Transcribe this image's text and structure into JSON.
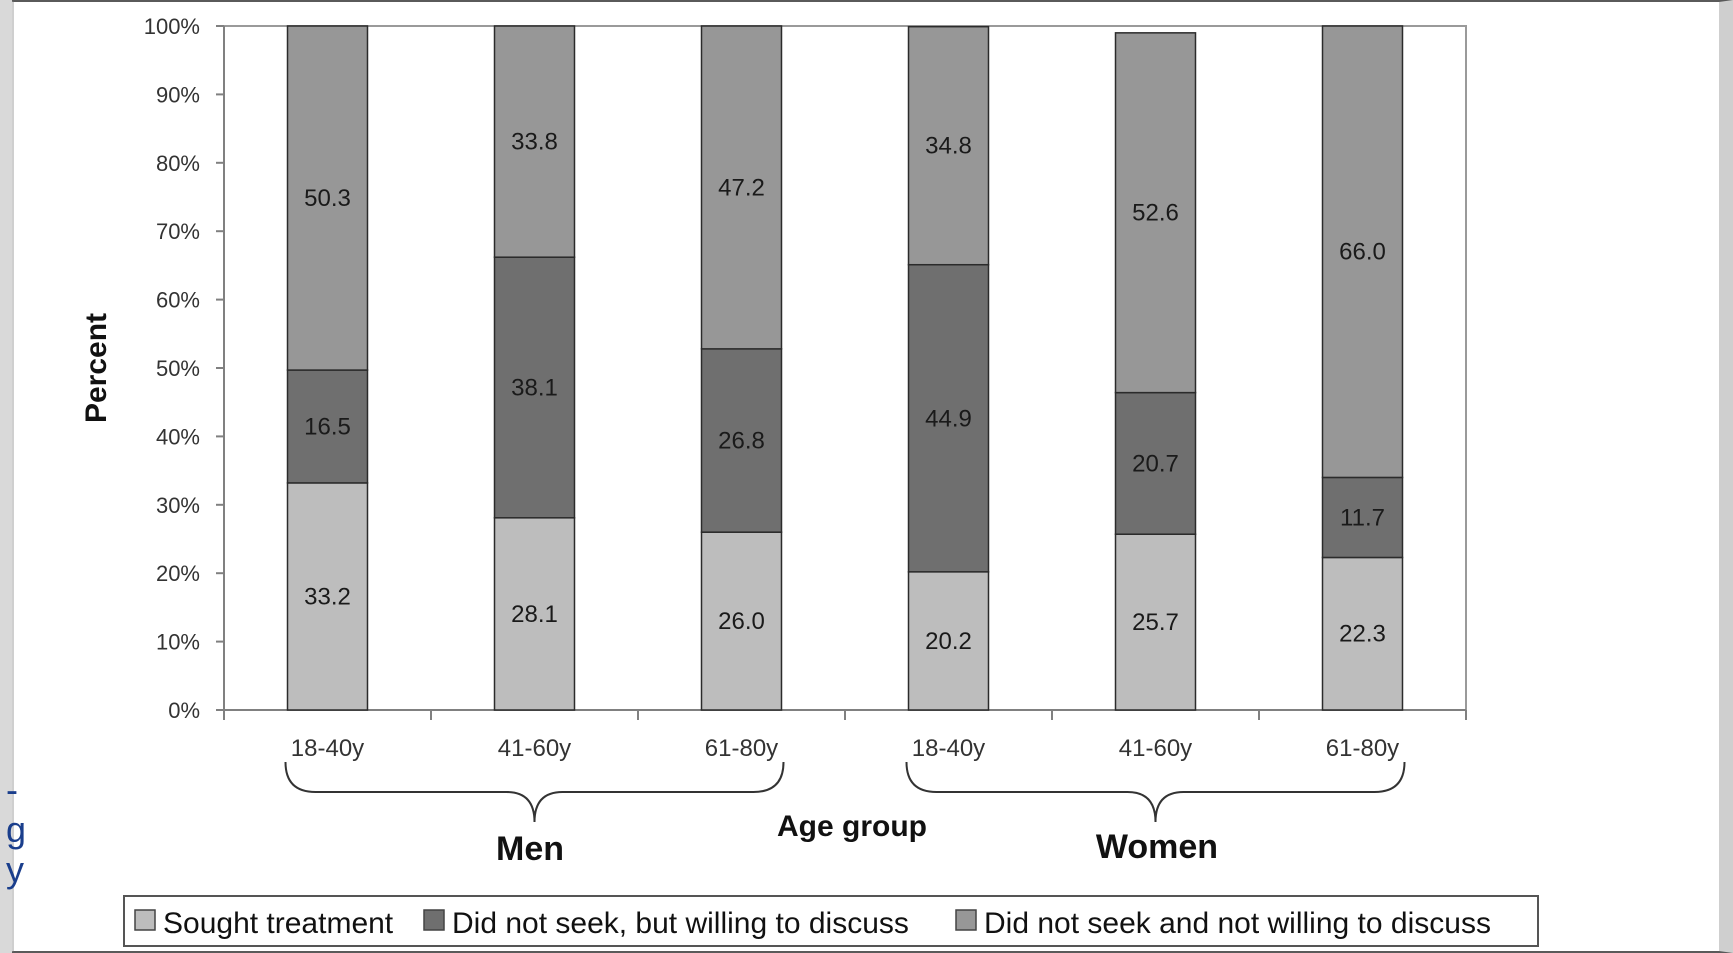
{
  "chart_data": {
    "type": "bar",
    "stacked": true,
    "normalized": true,
    "categories": [
      "18-40y",
      "41-60y",
      "61-80y",
      "18-40y",
      "41-60y",
      "61-80y"
    ],
    "groups": [
      {
        "label": "Men",
        "categories": [
          0,
          1,
          2
        ]
      },
      {
        "label": "Women",
        "categories": [
          3,
          4,
          5
        ]
      }
    ],
    "series": [
      {
        "name": "Sought treatment",
        "values": [
          33.2,
          28.1,
          26.0,
          20.2,
          25.7,
          22.3
        ],
        "labels": [
          "33.2",
          "28.1",
          "26.0",
          "20.2",
          "25.7",
          "22.3"
        ],
        "color": "#bdbdbd"
      },
      {
        "name": "Did not seek, but willing to discuss",
        "values": [
          16.5,
          38.1,
          26.8,
          44.9,
          20.7,
          11.7
        ],
        "labels": [
          "16.5",
          "38.1",
          "26.8",
          "44.9",
          "20.7",
          "11.7"
        ],
        "color": "#6f6f6f"
      },
      {
        "name": "Did not seek and not willing to discuss",
        "values": [
          50.3,
          33.8,
          47.2,
          34.8,
          52.6,
          66.0
        ],
        "labels": [
          "50.3",
          "33.8",
          "47.2",
          "34.8",
          "52.6",
          "66.0"
        ],
        "color": "#979797"
      }
    ],
    "ylabel": "Percent",
    "xlabel": "Age group",
    "ylim": [
      0,
      100
    ],
    "yticks": [
      "0%",
      "10%",
      "20%",
      "30%",
      "40%",
      "50%",
      "60%",
      "70%",
      "80%",
      "90%",
      "100%"
    ],
    "legend_position": "bottom",
    "grid": false
  },
  "page": {
    "left_edge_text": [
      "-",
      "g",
      "y"
    ]
  }
}
